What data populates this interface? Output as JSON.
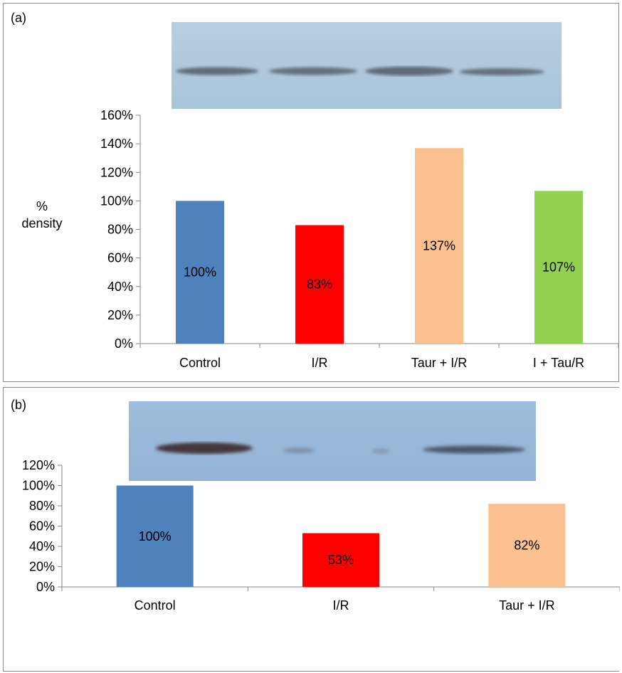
{
  "panels": [
    {
      "label": "(a)",
      "colors": [
        "#4f81bd",
        "#ff0000",
        "#fac090",
        "#92d050"
      ],
      "chart_data": {
        "type": "bar",
        "categories": [
          "Control",
          "I/R",
          "Taur + I/R",
          "I + Tau/R"
        ],
        "values": [
          100,
          83,
          137,
          107
        ],
        "data_labels": [
          "100%",
          "83%",
          "137%",
          "107%"
        ],
        "ylabel": "% density",
        "ylim": [
          0,
          160
        ],
        "yticks": [
          0,
          20,
          40,
          60,
          80,
          100,
          120,
          140,
          160
        ],
        "ytick_labels": [
          "0%",
          "20%",
          "40%",
          "60%",
          "80%",
          "100%",
          "120%",
          "140%",
          "160%"
        ],
        "grid": false,
        "legend": "none"
      }
    },
    {
      "label": "(b)",
      "colors": [
        "#4f81bd",
        "#ff0000",
        "#fac090"
      ],
      "chart_data": {
        "type": "bar",
        "categories": [
          "Control",
          "I/R",
          "Taur + I/R"
        ],
        "values": [
          100,
          53,
          82
        ],
        "data_labels": [
          "100%",
          "53%",
          "82%"
        ],
        "ylabel": "",
        "ylim": [
          0,
          120
        ],
        "yticks": [
          0,
          20,
          40,
          60,
          80,
          100,
          120
        ],
        "ytick_labels": [
          "0%",
          "20%",
          "40%",
          "60%",
          "80%",
          "100%",
          "120%"
        ],
        "grid": false,
        "legend": "none"
      }
    }
  ]
}
